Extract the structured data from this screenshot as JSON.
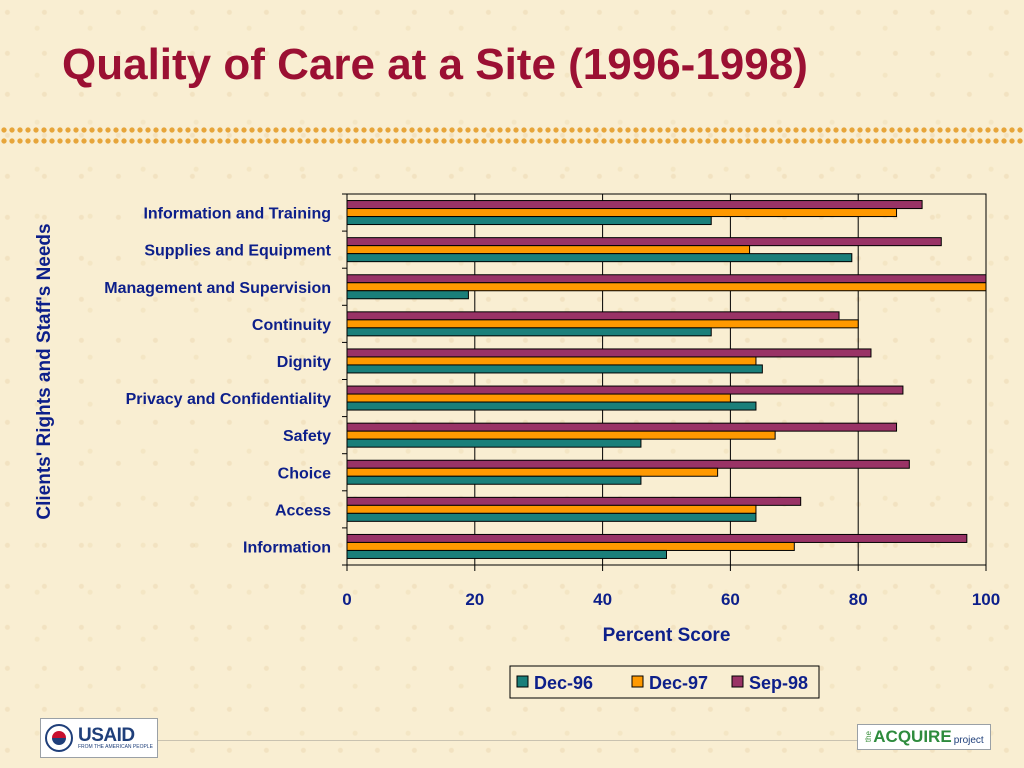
{
  "page": {
    "title": "Quality of Care at a Site (1996-1998)",
    "logos": {
      "usaid": {
        "name": "USAID",
        "tagline": "FROM THE AMERICAN PEOPLE"
      },
      "acquire": {
        "prefix": "the",
        "name": "ACQUIRE",
        "suffix": "project"
      }
    },
    "colors": {
      "title": "#9b1033",
      "text": "#0d1f8a",
      "dots": "#e7a53a",
      "background": "#f9eed2"
    }
  },
  "chart_data": {
    "type": "bar",
    "orientation": "horizontal",
    "title": "",
    "xlabel": "Percent Score",
    "ylabel": "Clients' Rights and Staff's Needs",
    "xlim": [
      0,
      100
    ],
    "xticks": [
      0,
      20,
      40,
      60,
      80,
      100
    ],
    "grid": true,
    "legend": "bottom",
    "categories": [
      "Information and Training",
      "Supplies and Equipment",
      "Management and Supervision",
      "Continuity",
      "Dignity",
      "Privacy and Confidentiality",
      "Safety",
      "Choice",
      "Access",
      "Information"
    ],
    "series": [
      {
        "name": "Dec-96",
        "color": "#1a7f7a",
        "values": [
          57,
          79,
          19,
          57,
          65,
          64,
          46,
          46,
          64,
          50
        ]
      },
      {
        "name": "Dec-97",
        "color": "#ff9900",
        "values": [
          86,
          63,
          100,
          80,
          64,
          60,
          67,
          58,
          64,
          70
        ]
      },
      {
        "name": "Sep-98",
        "color": "#993366",
        "values": [
          90,
          93,
          100,
          77,
          82,
          87,
          86,
          88,
          71,
          97
        ]
      }
    ]
  }
}
